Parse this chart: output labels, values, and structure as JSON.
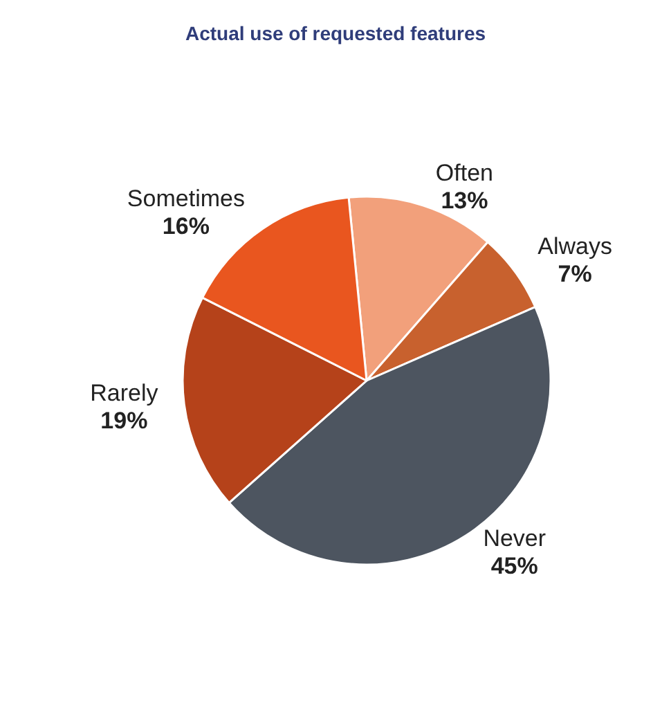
{
  "chart_data": {
    "type": "pie",
    "title": "Actual use of requested features",
    "categories": [
      "Often",
      "Always",
      "Never",
      "Rarely",
      "Sometimes"
    ],
    "values": [
      13,
      7,
      45,
      19,
      16
    ],
    "value_labels": [
      "13%",
      "7%",
      "45%",
      "19%",
      "16%"
    ],
    "colors": [
      "#f2a07b",
      "#c8612e",
      "#4d5560",
      "#b5421a",
      "#e9561f"
    ],
    "legend": false
  }
}
